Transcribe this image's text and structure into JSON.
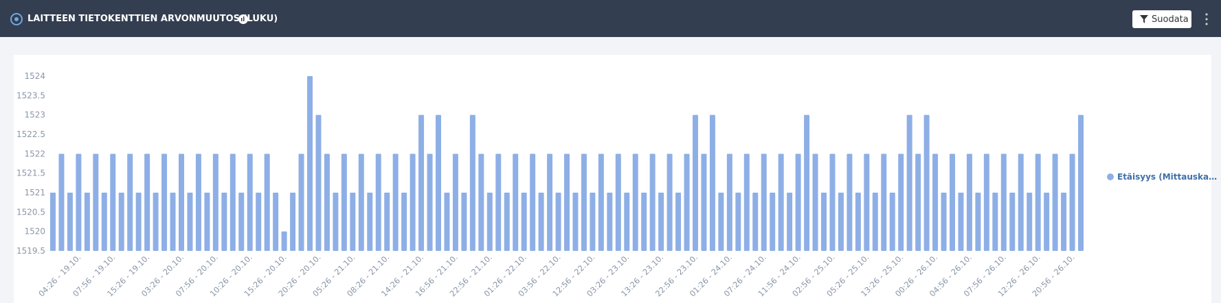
{
  "header": {
    "title": "LAITTEEN TIETOKENTTIEN ARVONMUUTOS (LUKU)",
    "button": "Suodata"
  },
  "chart_data": {
    "type": "bar",
    "categories": [
      null,
      null,
      null,
      "04:26 - 19.10.",
      null,
      null,
      null,
      "07:56 - 19.10.",
      null,
      null,
      null,
      "15:26 - 19.10.",
      null,
      null,
      null,
      "03:26 - 20.10.",
      null,
      null,
      null,
      "07:56 - 20.10.",
      null,
      null,
      null,
      "10:26 - 20.10.",
      null,
      null,
      null,
      "15:26 - 20.10.",
      null,
      null,
      null,
      "20:26 - 20.10.",
      null,
      null,
      null,
      "05:26 - 21.10.",
      null,
      null,
      null,
      "08:26 - 21.10.",
      null,
      null,
      null,
      "14:26 - 21.10.",
      null,
      null,
      null,
      "16:56 - 21.10.",
      null,
      null,
      null,
      "22:56 - 21.10.",
      null,
      null,
      null,
      "01:26 - 22.10.",
      null,
      null,
      null,
      "03:56 - 22.10.",
      null,
      null,
      null,
      "12:56 - 22.10.",
      null,
      null,
      null,
      "03:26 - 23.10.",
      null,
      null,
      null,
      "13:26 - 23.10.",
      null,
      null,
      null,
      "22:56 - 23.10.",
      null,
      null,
      null,
      "01:26 - 24.10.",
      null,
      null,
      null,
      "07:26 - 24.10.",
      null,
      null,
      null,
      "11:56 - 24.10.",
      null,
      null,
      null,
      "02:56 - 25.10.",
      null,
      null,
      null,
      "05:26 - 25.10.",
      null,
      null,
      null,
      "13:26 - 25.10.",
      null,
      null,
      null,
      "00:26 - 26.10.",
      null,
      null,
      null,
      "04:56 - 26.10.",
      null,
      null,
      null,
      "07:56 - 26.10.",
      null,
      null,
      null,
      "12:26 - 26.10.",
      null,
      null,
      null,
      "20:56 - 26.10.",
      null
    ],
    "series": [
      {
        "name": "Etäisyys (Mittauska…",
        "color": "#8eafe6",
        "values": [
          1521,
          1522,
          1521,
          1522,
          1521,
          1522,
          1521,
          1522,
          1521,
          1522,
          1521,
          1522,
          1521,
          1522,
          1521,
          1522,
          1521,
          1522,
          1521,
          1522,
          1521,
          1522,
          1521,
          1522,
          1521,
          1522,
          1521,
          1520,
          1521,
          1522,
          1524,
          1523,
          1522,
          1521,
          1522,
          1521,
          1522,
          1521,
          1522,
          1521,
          1522,
          1521,
          1522,
          1523,
          1522,
          1523,
          1521,
          1522,
          1521,
          1523,
          1522,
          1521,
          1522,
          1521,
          1522,
          1521,
          1522,
          1521,
          1522,
          1521,
          1522,
          1521,
          1522,
          1521,
          1522,
          1521,
          1522,
          1521,
          1522,
          1521,
          1522,
          1521,
          1522,
          1521,
          1522,
          1523,
          1522,
          1523,
          1521,
          1522,
          1521,
          1522,
          1521,
          1522,
          1521,
          1522,
          1521,
          1522,
          1523,
          1522,
          1521,
          1522,
          1521,
          1522,
          1521,
          1522,
          1521,
          1522,
          1521,
          1522,
          1523,
          1522,
          1523,
          1522,
          1521,
          1522,
          1521,
          1522,
          1521,
          1522,
          1521,
          1522,
          1521,
          1522,
          1521,
          1522,
          1521,
          1522,
          1521,
          1522,
          1523
        ]
      }
    ],
    "ylim": [
      1519.5,
      1524
    ],
    "yticks": [
      1519.5,
      1520,
      1520.5,
      1521,
      1521.5,
      1522,
      1522.5,
      1523,
      1523.5,
      1524
    ],
    "grid": false,
    "legend": "right"
  }
}
